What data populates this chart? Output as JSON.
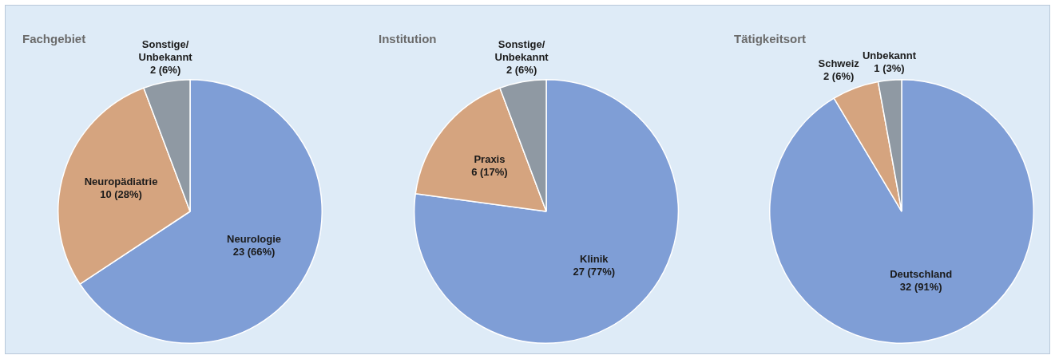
{
  "chart_data": [
    {
      "type": "pie",
      "title": "Fachgebiet",
      "categories": [
        "Neurologie",
        "Neuropädiatrie",
        "Sonstige/Unbekannt"
      ],
      "values": [
        23,
        10,
        2
      ],
      "value_labels": [
        "23 (66%)",
        "10 (28%)",
        "2 (6%)"
      ],
      "colors": [
        "#7f9ed6",
        "#d5a47f",
        "#8f99a3"
      ],
      "legend": false
    },
    {
      "type": "pie",
      "title": "Institution",
      "categories": [
        "Klinik",
        "Praxis",
        "Sonstige/Unbekannt"
      ],
      "values": [
        27,
        6,
        2
      ],
      "value_labels": [
        "27 (77%)",
        "6 (17%)",
        "2 (6%)"
      ],
      "colors": [
        "#7f9ed6",
        "#d5a47f",
        "#8f99a3"
      ],
      "legend": false
    },
    {
      "type": "pie",
      "title": "Tätigkeitsort",
      "categories": [
        "Deutschland",
        "Schweiz",
        "Unbekannt"
      ],
      "values": [
        32,
        2,
        1
      ],
      "value_labels": [
        "32 (91%)",
        "2 (6%)",
        "1 (3%)"
      ],
      "colors": [
        "#7f9ed6",
        "#d5a47f",
        "#8f99a3"
      ],
      "legend": false
    }
  ]
}
